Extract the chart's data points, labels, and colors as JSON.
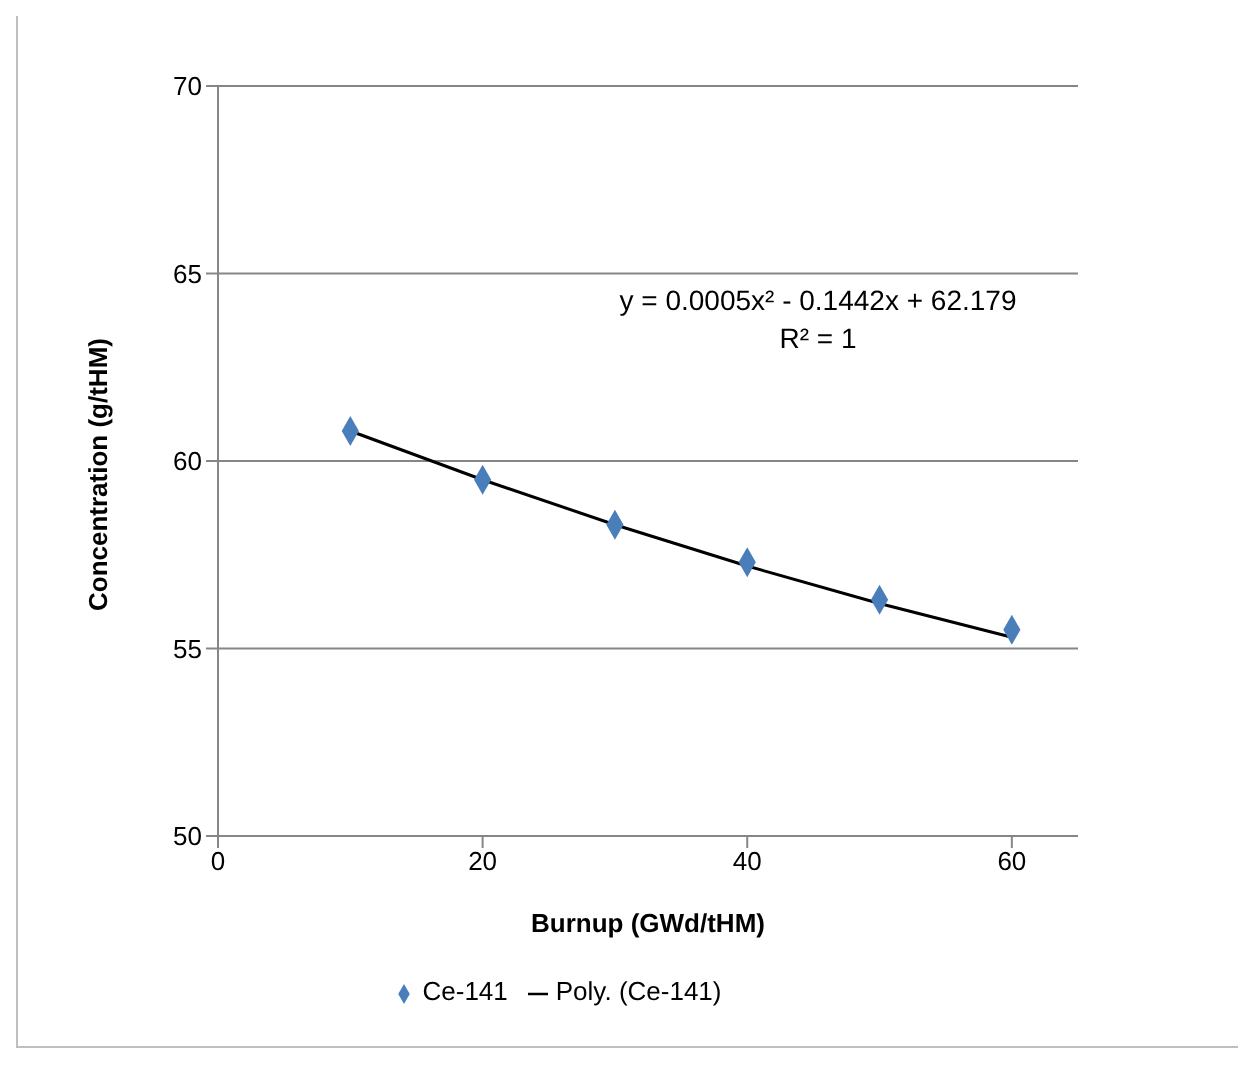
{
  "chart_data": {
    "type": "scatter",
    "xlabel": "Burnup (GWd/tHM)",
    "ylabel": "Concentration (g/tHM)",
    "x": [
      10,
      20,
      30,
      40,
      50,
      60
    ],
    "series": [
      {
        "name": "Ce-141",
        "color": "#4a7ebb",
        "marker": "diamond",
        "values": [
          60.8,
          59.5,
          58.3,
          57.3,
          56.3,
          55.5
        ]
      },
      {
        "name": "Poly. (Ce-141)",
        "type": "line",
        "color": "#000000",
        "marker": "none",
        "line_style": "solid",
        "values": [
          60.8,
          59.5,
          58.3,
          57.2,
          56.2,
          55.3
        ]
      }
    ],
    "xlim": [
      0,
      65
    ],
    "xticks": [
      0,
      20,
      40,
      60
    ],
    "ylim": [
      50,
      70
    ],
    "yticks": [
      50,
      55,
      60,
      65,
      70
    ],
    "grid": "y",
    "legend": "bottom",
    "annotations": [
      "y = 0.0005x² - 0.1442x + 62.179",
      "R² = 1"
    ]
  }
}
